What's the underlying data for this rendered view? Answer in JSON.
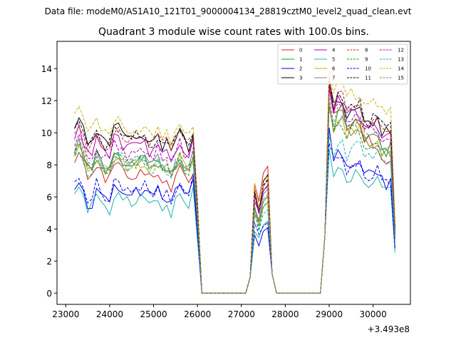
{
  "figure": {
    "suptitle": "Data file: modeM0/AS1A10_121T01_9000004134_28819cztM0_level2_quad_clean.evt"
  },
  "chart_data": {
    "type": "line",
    "title": "Quadrant 3 module wise count rates with 100.0s bins.",
    "xlabel": "",
    "ylabel": "",
    "x_offset_label": "+3.493e8",
    "xlim": [
      22800,
      30850
    ],
    "ylim": [
      -0.7,
      15.7
    ],
    "x_ticks": [
      23000,
      24000,
      25000,
      26000,
      27000,
      28000,
      29000,
      30000
    ],
    "x_tick_labels": [
      "23000",
      "24000",
      "25000",
      "26000",
      "27000",
      "28000",
      "29000",
      "30000"
    ],
    "y_ticks": [
      0,
      2,
      4,
      6,
      8,
      10,
      12,
      14
    ],
    "y_tick_labels": [
      "0",
      "2",
      "4",
      "6",
      "8",
      "10",
      "12",
      "14"
    ],
    "legend_position": "top-right",
    "segments": [
      {
        "x_start": 23200,
        "x_end": 25900
      },
      {
        "x_start": 26000,
        "x_end": 26000,
        "value": "low"
      },
      {
        "x_start": 26100,
        "x_end": 27100,
        "value": "zero"
      },
      {
        "x_start": 27200,
        "x_end": 27700,
        "value": "burst"
      },
      {
        "x_start": 27800,
        "x_end": 28800,
        "value": "zero"
      },
      {
        "x_start": 28900,
        "x_end": 30500
      }
    ],
    "series": [
      {
        "name": "0",
        "color": "#d62020",
        "dash": "solid",
        "level_a": 7.9,
        "level_b": 6.9,
        "mid": 8.2,
        "level_c": 12.0,
        "level_d": 7.9
      },
      {
        "name": "1",
        "color": "#1f9a1f",
        "dash": "solid",
        "level_a": 8.5,
        "level_b": 7.6,
        "mid": 6.4,
        "level_c": 11.2,
        "level_d": 8.6
      },
      {
        "name": "2",
        "color": "#0000ee",
        "dash": "solid",
        "level_a": 6.2,
        "level_b": 6.0,
        "mid": 4.5,
        "level_c": 9.0,
        "level_d": 6.6
      },
      {
        "name": "3",
        "color": "#000000",
        "dash": "solid",
        "level_a": 10.0,
        "level_b": 9.2,
        "mid": 7.5,
        "level_c": 12.3,
        "level_d": 9.6
      },
      {
        "name": "4",
        "color": "#b000b0",
        "dash": "solid",
        "level_a": 9.3,
        "level_b": 8.7,
        "mid": 7.0,
        "level_c": 12.1,
        "level_d": 9.1
      },
      {
        "name": "5",
        "color": "#20b2aa",
        "dash": "solid",
        "level_a": 5.9,
        "level_b": 5.4,
        "mid": 4.8,
        "level_c": 7.7,
        "level_d": 6.0
      },
      {
        "name": "6",
        "color": "#c8b000",
        "dash": "solid",
        "level_a": 8.2,
        "level_b": 7.6,
        "mid": 6.2,
        "level_c": 11.0,
        "level_d": 8.3
      },
      {
        "name": "7",
        "color": "#808080",
        "dash": "solid",
        "level_a": 8.4,
        "level_b": 7.8,
        "mid": 6.6,
        "level_c": 11.0,
        "level_d": 8.4
      },
      {
        "name": "8",
        "color": "#d62020",
        "dash": "dashed",
        "level_a": 9.6,
        "level_b": 9.3,
        "mid": 7.4,
        "level_c": 12.5,
        "level_d": 9.4
      },
      {
        "name": "9",
        "color": "#1f9a1f",
        "dash": "dashed",
        "level_a": 8.3,
        "level_b": 7.7,
        "mid": 6.1,
        "level_c": 10.8,
        "level_d": 8.4
      },
      {
        "name": "10",
        "color": "#0000ee",
        "dash": "dashed",
        "level_a": 6.6,
        "level_b": 6.3,
        "mid": 4.9,
        "level_c": 8.8,
        "level_d": 6.6
      },
      {
        "name": "11",
        "color": "#000000",
        "dash": "dashed",
        "level_a": 9.9,
        "level_b": 9.3,
        "mid": 7.2,
        "level_c": 12.3,
        "level_d": 9.9
      },
      {
        "name": "12",
        "color": "#b000b0",
        "dash": "dashed",
        "level_a": 8.8,
        "level_b": 8.6,
        "mid": 7.0,
        "level_c": 11.9,
        "level_d": 9.1
      },
      {
        "name": "13",
        "color": "#20b2aa",
        "dash": "dashed",
        "level_a": 8.2,
        "level_b": 7.6,
        "mid": 5.6,
        "level_c": 9.4,
        "level_d": 7.9
      },
      {
        "name": "14",
        "color": "#c8b000",
        "dash": "dashed",
        "level_a": 10.8,
        "level_b": 9.6,
        "mid": 7.9,
        "level_c": 13.0,
        "level_d": 10.8
      },
      {
        "name": "15",
        "color": "#808080",
        "dash": "dashed",
        "level_a": 8.5,
        "level_b": 8.0,
        "mid": 6.3,
        "level_c": 11.6,
        "level_d": 8.6
      }
    ]
  }
}
